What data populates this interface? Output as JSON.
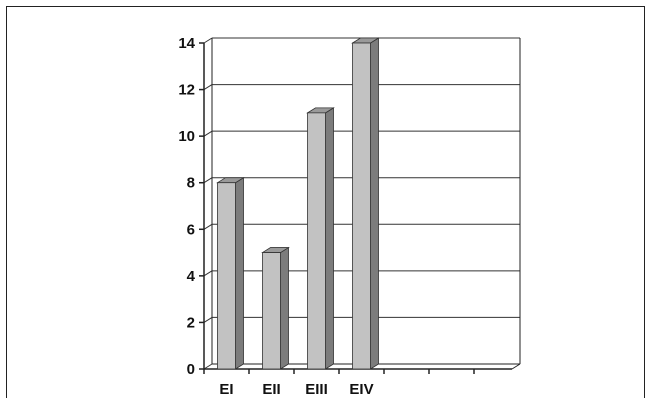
{
  "chart_data": {
    "type": "bar",
    "categories": [
      "EI",
      "EII",
      "EIII",
      "EIV"
    ],
    "values": [
      8,
      5,
      11,
      14
    ],
    "title": "",
    "xlabel": "",
    "ylabel": "",
    "ylim": [
      0,
      14
    ],
    "yticks": [
      "0",
      "2",
      "4",
      "6",
      "8",
      "10",
      "12",
      "14"
    ],
    "grid": true,
    "legend": "none",
    "style": "3d-column",
    "colors": {
      "bar_front": "#c2c2c2",
      "bar_top": "#9a9a9a",
      "bar_side": "#7c7c7c",
      "axis": "#222222",
      "grid": "#333333"
    }
  }
}
